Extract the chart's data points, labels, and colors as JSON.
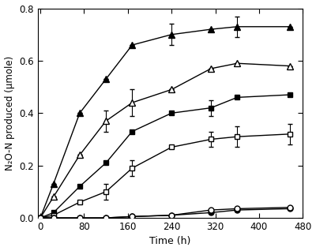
{
  "title": "",
  "xlabel": "Time (h)",
  "ylabel": "N₂O-N produced (μmole)",
  "xlim": [
    -5,
    480
  ],
  "ylim": [
    0,
    0.8
  ],
  "xticks": [
    0,
    80,
    160,
    240,
    320,
    400,
    480
  ],
  "yticks": [
    0.0,
    0.2,
    0.4,
    0.6,
    0.8
  ],
  "series": [
    {
      "label": "filled_triangle",
      "x": [
        0,
        24,
        72,
        120,
        168,
        240,
        312,
        360,
        456
      ],
      "y": [
        0.0,
        0.13,
        0.4,
        0.53,
        0.66,
        0.7,
        0.72,
        0.73,
        0.73
      ],
      "yerr": [
        0.0,
        0.0,
        0.0,
        0.0,
        0.0,
        0.04,
        0.0,
        0.04,
        0.0
      ],
      "marker": "^",
      "filled": true,
      "color": "black",
      "markersize": 6
    },
    {
      "label": "open_triangle",
      "x": [
        0,
        24,
        72,
        120,
        168,
        240,
        312,
        360,
        456
      ],
      "y": [
        0.0,
        0.08,
        0.24,
        0.37,
        0.44,
        0.49,
        0.57,
        0.59,
        0.58
      ],
      "yerr": [
        0.0,
        0.0,
        0.0,
        0.04,
        0.05,
        0.0,
        0.0,
        0.0,
        0.0
      ],
      "marker": "^",
      "filled": false,
      "color": "black",
      "markersize": 6
    },
    {
      "label": "filled_square",
      "x": [
        0,
        24,
        72,
        120,
        168,
        240,
        312,
        360,
        456
      ],
      "y": [
        0.0,
        0.02,
        0.12,
        0.21,
        0.33,
        0.4,
        0.42,
        0.46,
        0.47
      ],
      "yerr": [
        0.0,
        0.0,
        0.0,
        0.0,
        0.0,
        0.0,
        0.03,
        0.0,
        0.0
      ],
      "marker": "s",
      "filled": true,
      "color": "black",
      "markersize": 5
    },
    {
      "label": "open_square",
      "x": [
        0,
        24,
        72,
        120,
        168,
        240,
        312,
        360,
        456
      ],
      "y": [
        0.0,
        0.01,
        0.06,
        0.1,
        0.19,
        0.27,
        0.3,
        0.31,
        0.32
      ],
      "yerr": [
        0.0,
        0.0,
        0.0,
        0.03,
        0.03,
        0.0,
        0.03,
        0.04,
        0.04
      ],
      "marker": "s",
      "filled": false,
      "color": "black",
      "markersize": 5
    },
    {
      "label": "filled_circle",
      "x": [
        0,
        24,
        72,
        120,
        168,
        240,
        312,
        360,
        456
      ],
      "y": [
        0.0,
        0.0,
        0.0,
        0.0,
        0.005,
        0.01,
        0.02,
        0.03,
        0.035
      ],
      "yerr": [
        0.0,
        0.0,
        0.0,
        0.0,
        0.0,
        0.0,
        0.0,
        0.0,
        0.0
      ],
      "marker": "o",
      "filled": true,
      "color": "black",
      "markersize": 5
    },
    {
      "label": "open_circle",
      "x": [
        0,
        24,
        72,
        120,
        168,
        240,
        312,
        360,
        456
      ],
      "y": [
        0.0,
        0.0,
        0.0,
        0.0,
        0.005,
        0.01,
        0.03,
        0.035,
        0.04
      ],
      "yerr": [
        0.0,
        0.0,
        0.0,
        0.0,
        0.0,
        0.0,
        0.0,
        0.0,
        0.0
      ],
      "marker": "o",
      "filled": false,
      "color": "black",
      "markersize": 5
    }
  ],
  "background_color": "#ffffff",
  "linewidth": 1.0,
  "figsize": [
    4.0,
    3.18
  ],
  "dpi": 100
}
